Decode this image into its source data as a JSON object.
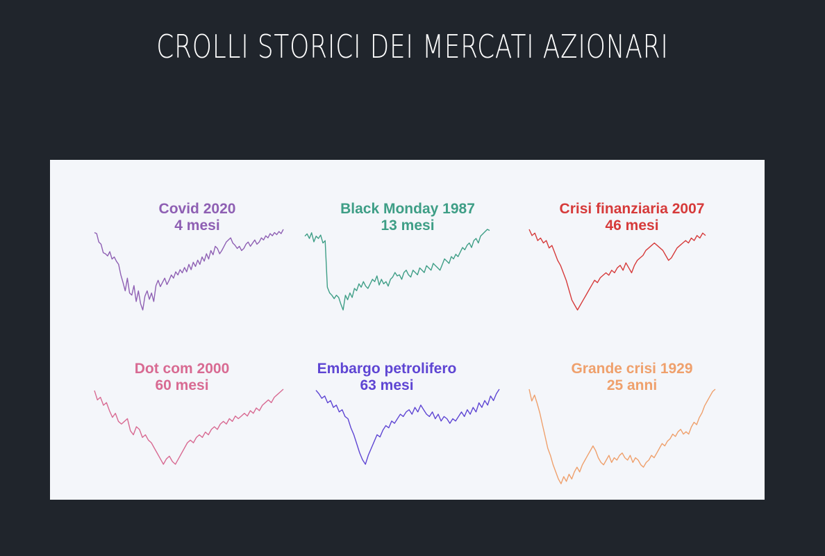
{
  "page": {
    "title": "CROLLI STORICI DEI MERCATI AZIONARI"
  },
  "chart_data": [
    {
      "type": "line",
      "title": "Covid 2020",
      "subtitle": "4 mesi",
      "color": "#8e5fb3",
      "values": [
        95,
        94,
        86,
        84,
        76,
        75,
        73,
        77,
        70,
        72,
        68,
        65,
        55,
        48,
        40,
        52,
        38,
        36,
        45,
        30,
        40,
        28,
        22,
        35,
        40,
        32,
        38,
        30,
        45,
        50,
        44,
        48,
        52,
        46,
        50,
        55,
        52,
        58,
        55,
        60,
        57,
        62,
        58,
        65,
        60,
        67,
        63,
        69,
        65,
        72,
        68,
        75,
        70,
        78,
        74,
        82,
        80,
        75,
        78,
        82,
        86,
        88,
        90,
        85,
        83,
        80,
        82,
        78,
        80,
        84,
        86,
        82,
        85,
        88,
        84,
        86,
        90,
        88,
        92,
        90,
        94,
        92,
        95,
        93,
        96,
        94,
        98
      ]
    },
    {
      "type": "line",
      "title": "Black Monday 1987",
      "subtitle": "13 mesi",
      "color": "#3e9e86",
      "values": [
        90,
        92,
        88,
        93,
        85,
        90,
        88,
        91,
        84,
        86,
        45,
        40,
        38,
        35,
        38,
        36,
        30,
        25,
        38,
        34,
        40,
        36,
        44,
        42,
        48,
        45,
        50,
        46,
        44,
        48,
        52,
        50,
        55,
        47,
        52,
        48,
        50,
        46,
        52,
        54,
        58,
        55,
        56,
        52,
        58,
        60,
        56,
        54,
        60,
        58,
        56,
        62,
        60,
        58,
        64,
        62,
        60,
        66,
        64,
        62,
        60,
        65,
        70,
        68,
        66,
        72,
        70,
        74,
        72,
        76,
        80,
        78,
        82,
        84,
        80,
        86,
        88,
        84,
        90,
        92,
        94,
        96,
        95
      ]
    },
    {
      "type": "line",
      "title": "Crisi finanziaria 2007",
      "subtitle": "46 mesi",
      "color": "#d63a3a",
      "values": [
        95,
        90,
        92,
        86,
        88,
        84,
        86,
        80,
        82,
        76,
        70,
        66,
        60,
        54,
        46,
        38,
        34,
        30,
        34,
        38,
        42,
        46,
        50,
        54,
        52,
        56,
        58,
        60,
        58,
        62,
        60,
        64,
        66,
        62,
        68,
        64,
        60,
        66,
        70,
        72,
        74,
        78,
        80,
        82,
        84,
        82,
        80,
        78,
        74,
        70,
        72,
        76,
        80,
        82,
        84,
        86,
        84,
        88,
        86,
        90,
        88,
        92,
        90
      ]
    },
    {
      "type": "line",
      "title": "Dot com 2000",
      "subtitle": "60 mesi",
      "color": "#d86a92",
      "values": [
        95,
        88,
        90,
        84,
        86,
        80,
        75,
        78,
        72,
        70,
        72,
        74,
        65,
        62,
        68,
        66,
        60,
        62,
        58,
        56,
        52,
        48,
        44,
        40,
        44,
        46,
        42,
        40,
        44,
        48,
        52,
        56,
        58,
        56,
        60,
        62,
        60,
        64,
        62,
        66,
        68,
        66,
        70,
        72,
        70,
        74,
        72,
        76,
        74,
        76,
        78,
        76,
        80,
        78,
        82,
        80,
        84,
        86,
        88,
        86,
        90,
        92,
        94,
        96
      ]
    },
    {
      "type": "line",
      "title": "Embargo petrolifero",
      "subtitle": "63 mesi",
      "color": "#5e45d3",
      "values": [
        95,
        92,
        88,
        90,
        84,
        86,
        80,
        82,
        76,
        78,
        72,
        70,
        62,
        56,
        48,
        40,
        34,
        30,
        38,
        44,
        50,
        56,
        54,
        60,
        64,
        62,
        68,
        66,
        70,
        74,
        72,
        76,
        78,
        74,
        80,
        76,
        82,
        78,
        74,
        72,
        76,
        70,
        74,
        68,
        72,
        70,
        66,
        70,
        68,
        72,
        76,
        72,
        78,
        74,
        80,
        76,
        84,
        80,
        86,
        82,
        90,
        86,
        92,
        96
      ]
    },
    {
      "type": "line",
      "title": "Grande crisi 1929",
      "subtitle": "25 anni",
      "color": "#efa06c",
      "values": [
        100,
        90,
        95,
        88,
        80,
        70,
        60,
        50,
        44,
        36,
        30,
        24,
        20,
        26,
        22,
        28,
        24,
        30,
        34,
        30,
        36,
        40,
        44,
        48,
        52,
        48,
        42,
        38,
        36,
        40,
        44,
        38,
        42,
        40,
        44,
        46,
        42,
        40,
        44,
        38,
        42,
        40,
        36,
        34,
        38,
        40,
        44,
        42,
        46,
        50,
        54,
        52,
        56,
        58,
        62,
        60,
        64,
        66,
        62,
        64,
        62,
        68,
        72,
        70,
        76,
        80,
        86,
        90,
        94,
        98,
        100
      ]
    }
  ]
}
